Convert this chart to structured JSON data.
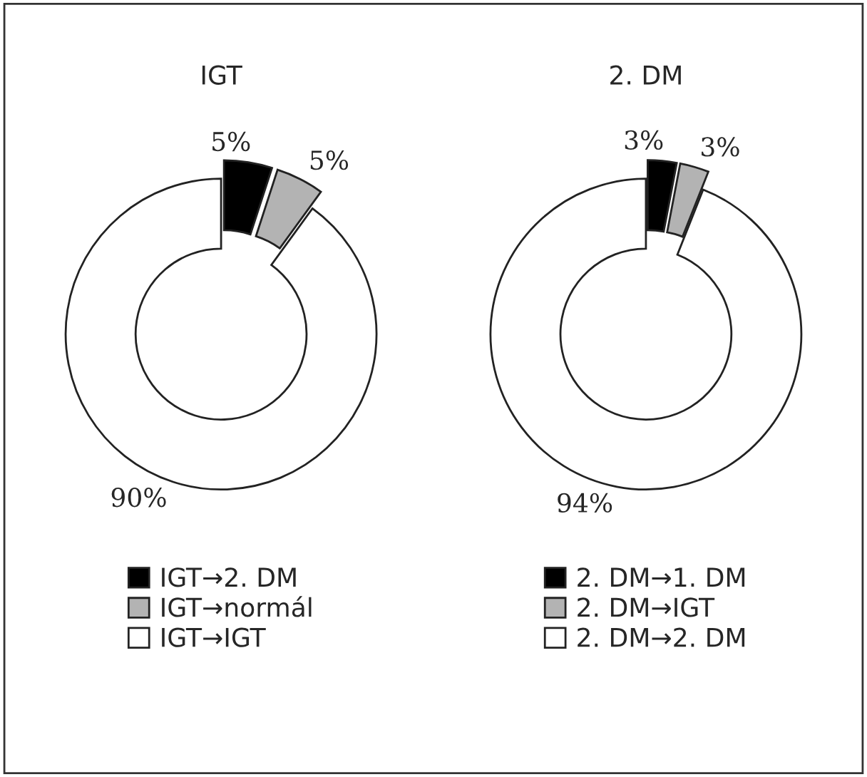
{
  "chart_data": [
    {
      "type": "donut",
      "title": "IGT",
      "categories": [
        "IGT→2. DM",
        "IGT→normál",
        "IGT→IGT"
      ],
      "values": [
        5,
        5,
        90
      ],
      "value_labels": [
        "5%",
        "5%",
        "90%"
      ],
      "colors": [
        "#000000",
        "#b3b3b3",
        "#ffffff"
      ],
      "legend": "bottom"
    },
    {
      "type": "donut",
      "title": "2. DM",
      "categories": [
        "2. DM→1. DM",
        "2. DM→IGT",
        "2. DM→2. DM"
      ],
      "values": [
        3,
        3,
        94
      ],
      "value_labels": [
        "3%",
        "3%",
        "94%"
      ],
      "colors": [
        "#000000",
        "#b3b3b3",
        "#ffffff"
      ],
      "legend": "bottom"
    }
  ]
}
